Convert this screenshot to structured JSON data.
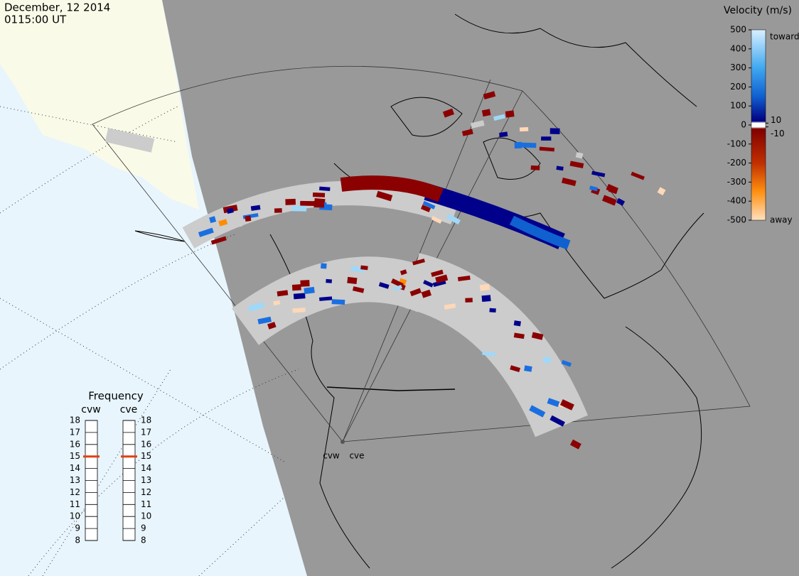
{
  "header": {
    "date": "December, 12 2014",
    "time": "0115:00 UT"
  },
  "velocity_scale": {
    "title": "Velocity (m/s)",
    "lim": [
      -500,
      500
    ],
    "ticks": [
      500,
      400,
      300,
      200,
      100,
      0,
      -100,
      -200,
      -300,
      -400,
      -500
    ],
    "inner_ticks": [
      10,
      -10
    ],
    "toward_label": "toward",
    "away_label": "away"
  },
  "frequency": {
    "title": "Frequency",
    "lim": [
      8,
      18
    ],
    "ticks": [
      18,
      17,
      16,
      15,
      14,
      13,
      12,
      11,
      10,
      9,
      8
    ],
    "radars": [
      {
        "name": "cvw",
        "value": 15
      },
      {
        "name": "cve",
        "value": 15
      }
    ]
  },
  "sites": [
    {
      "label": "cvw"
    },
    {
      "label": "cve"
    }
  ]
}
